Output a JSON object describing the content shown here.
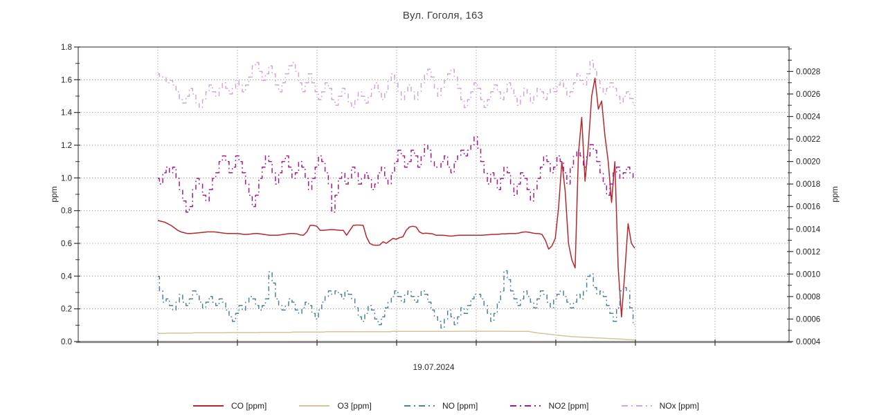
{
  "chart_data": {
    "type": "line",
    "title": "Вул. Гоголя, 163",
    "xlabel": "19.07.2024",
    "grid": true,
    "legend_position": "bottom",
    "x_axis": {
      "date_label": "19.07.2024",
      "hours_span": 24,
      "points_per_series": 145,
      "note_hours_gridlines": [
        0,
        4,
        8,
        12,
        16,
        20,
        24,
        28
      ]
    },
    "left_axis": {
      "label": "ppm",
      "min": 0.0,
      "max": 1.8,
      "tick_step": 0.2,
      "minor_step": 0.1,
      "tick_labels": [
        "0.0",
        "0.2",
        "0.4",
        "0.6",
        "0.8",
        "1.0",
        "1.2",
        "1.4",
        "1.6",
        "1.8"
      ]
    },
    "right_axis": {
      "label": "ppm",
      "tick_values": [
        0.0004,
        0.0006,
        0.0008,
        0.001,
        0.0012,
        0.0014,
        0.0016,
        0.0018,
        0.002,
        0.0022,
        0.0024,
        0.0026,
        0.0028
      ],
      "minor_step": 0.0001,
      "tick_labels": [
        "0.0004",
        "0.0006",
        "0.0008",
        "0.0010",
        "0.0012",
        "0.0014",
        "0.0016",
        "0.0018",
        "0.0020",
        "0.0022",
        "0.0024",
        "0.0026",
        "0.0028"
      ]
    },
    "series": [
      {
        "id": "co",
        "label": "CO [ppm]",
        "color": "#b8252a",
        "line_style": "solid",
        "axis": "left",
        "values": [
          0.74,
          0.735,
          0.73,
          0.72,
          0.71,
          0.695,
          0.68,
          0.67,
          0.665,
          0.66,
          0.66,
          0.662,
          0.664,
          0.666,
          0.668,
          0.67,
          0.67,
          0.67,
          0.668,
          0.665,
          0.662,
          0.66,
          0.66,
          0.66,
          0.66,
          0.658,
          0.655,
          0.655,
          0.657,
          0.66,
          0.66,
          0.658,
          0.655,
          0.652,
          0.65,
          0.65,
          0.65,
          0.652,
          0.655,
          0.658,
          0.66,
          0.66,
          0.658,
          0.652,
          0.65,
          0.67,
          0.71,
          0.71,
          0.705,
          0.68,
          0.68,
          0.682,
          0.684,
          0.684,
          0.682,
          0.68,
          0.68,
          0.65,
          0.68,
          0.71,
          0.712,
          0.712,
          0.71,
          0.64,
          0.6,
          0.59,
          0.588,
          0.59,
          0.61,
          0.6,
          0.615,
          0.63,
          0.625,
          0.635,
          0.64,
          0.68,
          0.7,
          0.705,
          0.7,
          0.67,
          0.66,
          0.662,
          0.66,
          0.658,
          0.65,
          0.65,
          0.65,
          0.648,
          0.645,
          0.645,
          0.648,
          0.65,
          0.65,
          0.65,
          0.65,
          0.65,
          0.65,
          0.65,
          0.65,
          0.652,
          0.653,
          0.655,
          0.655,
          0.656,
          0.658,
          0.658,
          0.66,
          0.66,
          0.66,
          0.663,
          0.668,
          0.67,
          0.668,
          0.664,
          0.66,
          0.66,
          0.655,
          0.62,
          0.565,
          0.585,
          0.63,
          0.82,
          1.1,
          0.92,
          0.6,
          0.5,
          0.45,
          1.15,
          1.37,
          0.98,
          1.2,
          1.5,
          1.61,
          1.42,
          1.47,
          1.26,
          1.1,
          0.85,
          1.1,
          0.45,
          0.15,
          0.42,
          0.72,
          0.6,
          0.57
        ]
      },
      {
        "id": "o3",
        "label": "O3 [ppm]",
        "color": "#d4c49a",
        "line_style": "solid",
        "axis": "left",
        "values": [
          0.05,
          0.05,
          0.05,
          0.052,
          0.052,
          0.052,
          0.052,
          0.052,
          0.052,
          0.052,
          0.052,
          0.054,
          0.054,
          0.054,
          0.054,
          0.054,
          0.054,
          0.054,
          0.054,
          0.054,
          0.054,
          0.055,
          0.055,
          0.055,
          0.055,
          0.055,
          0.055,
          0.055,
          0.055,
          0.055,
          0.055,
          0.056,
          0.056,
          0.056,
          0.056,
          0.056,
          0.056,
          0.056,
          0.056,
          0.056,
          0.056,
          0.058,
          0.058,
          0.058,
          0.058,
          0.058,
          0.058,
          0.058,
          0.058,
          0.058,
          0.058,
          0.06,
          0.06,
          0.06,
          0.06,
          0.06,
          0.06,
          0.06,
          0.06,
          0.06,
          0.06,
          0.06,
          0.06,
          0.06,
          0.06,
          0.06,
          0.06,
          0.06,
          0.06,
          0.06,
          0.06,
          0.062,
          0.062,
          0.062,
          0.062,
          0.062,
          0.062,
          0.062,
          0.062,
          0.062,
          0.062,
          0.062,
          0.062,
          0.062,
          0.062,
          0.062,
          0.062,
          0.062,
          0.062,
          0.062,
          0.062,
          0.063,
          0.063,
          0.063,
          0.063,
          0.063,
          0.063,
          0.063,
          0.063,
          0.063,
          0.063,
          0.063,
          0.063,
          0.063,
          0.063,
          0.063,
          0.062,
          0.062,
          0.062,
          0.062,
          0.062,
          0.062,
          0.062,
          0.058,
          0.055,
          0.052,
          0.05,
          0.048,
          0.045,
          0.043,
          0.04,
          0.038,
          0.036,
          0.034,
          0.032,
          0.03,
          0.029,
          0.028,
          0.027,
          0.026,
          0.025,
          0.024,
          0.023,
          0.022,
          0.021,
          0.02,
          0.019,
          0.018,
          0.017,
          0.016,
          0.015,
          0.013,
          0.012,
          0.011,
          0.01
        ]
      },
      {
        "id": "no",
        "label": "NO [ppm]",
        "color": "#4d7ea8",
        "line_style": "dashdot",
        "axis": "right",
        "values": [
          0.00098,
          0.00085,
          0.00075,
          0.00078,
          0.00072,
          0.00068,
          0.00075,
          0.00082,
          0.00075,
          0.00072,
          0.00078,
          0.00085,
          0.00082,
          0.00075,
          0.0007,
          0.00075,
          0.0008,
          0.00075,
          0.00072,
          0.00078,
          0.00075,
          0.00068,
          0.00062,
          0.00058,
          0.00065,
          0.00072,
          0.00068,
          0.00075,
          0.0008,
          0.00078,
          0.00072,
          0.00068,
          0.00072,
          0.00078,
          0.00102,
          0.00092,
          0.00078,
          0.00072,
          0.00068,
          0.00072,
          0.00078,
          0.00075,
          0.00068,
          0.00065,
          0.0007,
          0.00075,
          0.00072,
          0.00065,
          0.0006,
          0.00068,
          0.00075,
          0.0008,
          0.00085,
          0.00082,
          0.00085,
          0.00082,
          0.00078,
          0.00085,
          0.00082,
          0.00078,
          0.0007,
          0.00062,
          0.00058,
          0.00065,
          0.00072,
          0.00068,
          0.0006,
          0.00055,
          0.00062,
          0.0007,
          0.00075,
          0.0008,
          0.00085,
          0.0008,
          0.00075,
          0.00082,
          0.00085,
          0.0008,
          0.00075,
          0.0008,
          0.00085,
          0.00082,
          0.00075,
          0.00068,
          0.00062,
          0.00058,
          0.00052,
          0.0006,
          0.00068,
          0.00062,
          0.00055,
          0.00062,
          0.0007,
          0.00065,
          0.00072,
          0.00078,
          0.00082,
          0.00082,
          0.00078,
          0.00072,
          0.00065,
          0.00058,
          0.00065,
          0.00075,
          0.00085,
          0.00103,
          0.00095,
          0.00085,
          0.00078,
          0.00072,
          0.00078,
          0.00085,
          0.0008,
          0.00075,
          0.0007,
          0.00078,
          0.00085,
          0.00082,
          0.00075,
          0.0007,
          0.00078,
          0.00082,
          0.00085,
          0.0008,
          0.00075,
          0.0007,
          0.00075,
          0.00082,
          0.00078,
          0.00085,
          0.00098,
          0.001,
          0.00088,
          0.00082,
          0.00085,
          0.0008,
          0.00072,
          0.00065,
          0.00058,
          0.0007,
          0.00085,
          0.00088,
          0.00085,
          0.0007,
          0.00055
        ]
      },
      {
        "id": "no2",
        "label": "NO2 [ppm]",
        "color": "#a4188c",
        "line_style": "dashdot",
        "axis": "right",
        "values": [
          0.00185,
          0.0018,
          0.0019,
          0.00195,
          0.0019,
          0.00195,
          0.00185,
          0.00175,
          0.00165,
          0.00155,
          0.0016,
          0.00175,
          0.00185,
          0.0018,
          0.0017,
          0.00165,
          0.00175,
          0.00185,
          0.0019,
          0.002,
          0.00205,
          0.002,
          0.0019,
          0.00195,
          0.00205,
          0.002,
          0.0019,
          0.0018,
          0.0017,
          0.0016,
          0.0017,
          0.00185,
          0.00195,
          0.00205,
          0.002,
          0.0019,
          0.0018,
          0.0019,
          0.002,
          0.00205,
          0.00195,
          0.00185,
          0.0019,
          0.002,
          0.00195,
          0.00185,
          0.00175,
          0.00185,
          0.00195,
          0.00205,
          0.002,
          0.0019,
          0.0018,
          0.00155,
          0.0017,
          0.00185,
          0.0019,
          0.0018,
          0.00185,
          0.00195,
          0.0019,
          0.0018,
          0.00185,
          0.0019,
          0.00185,
          0.00175,
          0.0018,
          0.0019,
          0.00195,
          0.00185,
          0.0018,
          0.0019,
          0.002,
          0.0021,
          0.00205,
          0.00195,
          0.002,
          0.0021,
          0.00205,
          0.00195,
          0.00205,
          0.00215,
          0.0021,
          0.002,
          0.00195,
          0.00195,
          0.002,
          0.00205,
          0.00195,
          0.0019,
          0.002,
          0.00205,
          0.0021,
          0.00205,
          0.0021,
          0.00215,
          0.00222,
          0.00212,
          0.002,
          0.0019,
          0.0018,
          0.0019,
          0.00185,
          0.00175,
          0.00185,
          0.00195,
          0.0019,
          0.0018,
          0.0017,
          0.0018,
          0.0019,
          0.00185,
          0.00175,
          0.00165,
          0.00175,
          0.00185,
          0.00195,
          0.00205,
          0.002,
          0.0019,
          0.00195,
          0.00205,
          0.002,
          0.0019,
          0.0018,
          0.00195,
          0.00205,
          0.0021,
          0.00205,
          0.00195,
          0.00205,
          0.00215,
          0.0021,
          0.002,
          0.0019,
          0.0018,
          0.0017,
          0.0018,
          0.0019,
          0.00195,
          0.00185,
          0.0019,
          0.00195,
          0.0019,
          0.00185
        ]
      },
      {
        "id": "nox",
        "label": "NOx [ppm]",
        "color": "#d4a3d9",
        "line_style": "dashdot",
        "axis": "right",
        "values": [
          0.00278,
          0.00275,
          0.00275,
          0.0027,
          0.00272,
          0.00268,
          0.00262,
          0.00255,
          0.00252,
          0.00258,
          0.00265,
          0.0026,
          0.00252,
          0.00248,
          0.00255,
          0.00262,
          0.00268,
          0.00262,
          0.00258,
          0.00265,
          0.0027,
          0.00265,
          0.0026,
          0.00265,
          0.00272,
          0.00268,
          0.00262,
          0.00268,
          0.00275,
          0.00285,
          0.00288,
          0.0028,
          0.00272,
          0.00278,
          0.00285,
          0.00278,
          0.00268,
          0.00262,
          0.0027,
          0.00278,
          0.00285,
          0.00288,
          0.0028,
          0.0027,
          0.00262,
          0.0027,
          0.00278,
          0.0027,
          0.00262,
          0.00255,
          0.00262,
          0.0027,
          0.00265,
          0.00255,
          0.0025,
          0.00258,
          0.00265,
          0.0026,
          0.00252,
          0.00248,
          0.00255,
          0.00262,
          0.00258,
          0.00252,
          0.00258,
          0.00265,
          0.0027,
          0.00262,
          0.00255,
          0.00262,
          0.00272,
          0.00278,
          0.0027,
          0.00262,
          0.00255,
          0.00262,
          0.00268,
          0.00262,
          0.00255,
          0.00262,
          0.0027,
          0.00278,
          0.00282,
          0.00275,
          0.00265,
          0.00258,
          0.00265,
          0.00272,
          0.00278,
          0.00282,
          0.00275,
          0.00265,
          0.00255,
          0.00248,
          0.00255,
          0.00262,
          0.0027,
          0.00265,
          0.00255,
          0.00248,
          0.00255,
          0.00262,
          0.00268,
          0.00262,
          0.00255,
          0.00262,
          0.0027,
          0.00265,
          0.00258,
          0.0025,
          0.00258,
          0.00265,
          0.0026,
          0.00252,
          0.00258,
          0.00265,
          0.00262,
          0.00255,
          0.0026,
          0.00265,
          0.00262,
          0.00268,
          0.00272,
          0.00265,
          0.00258,
          0.00262,
          0.0027,
          0.00278,
          0.00272,
          0.00268,
          0.00278,
          0.0029,
          0.00282,
          0.00272,
          0.00265,
          0.0026,
          0.00265,
          0.0027,
          0.00265,
          0.00258,
          0.00252,
          0.00258,
          0.00262,
          0.00256,
          0.0025
        ]
      }
    ]
  }
}
